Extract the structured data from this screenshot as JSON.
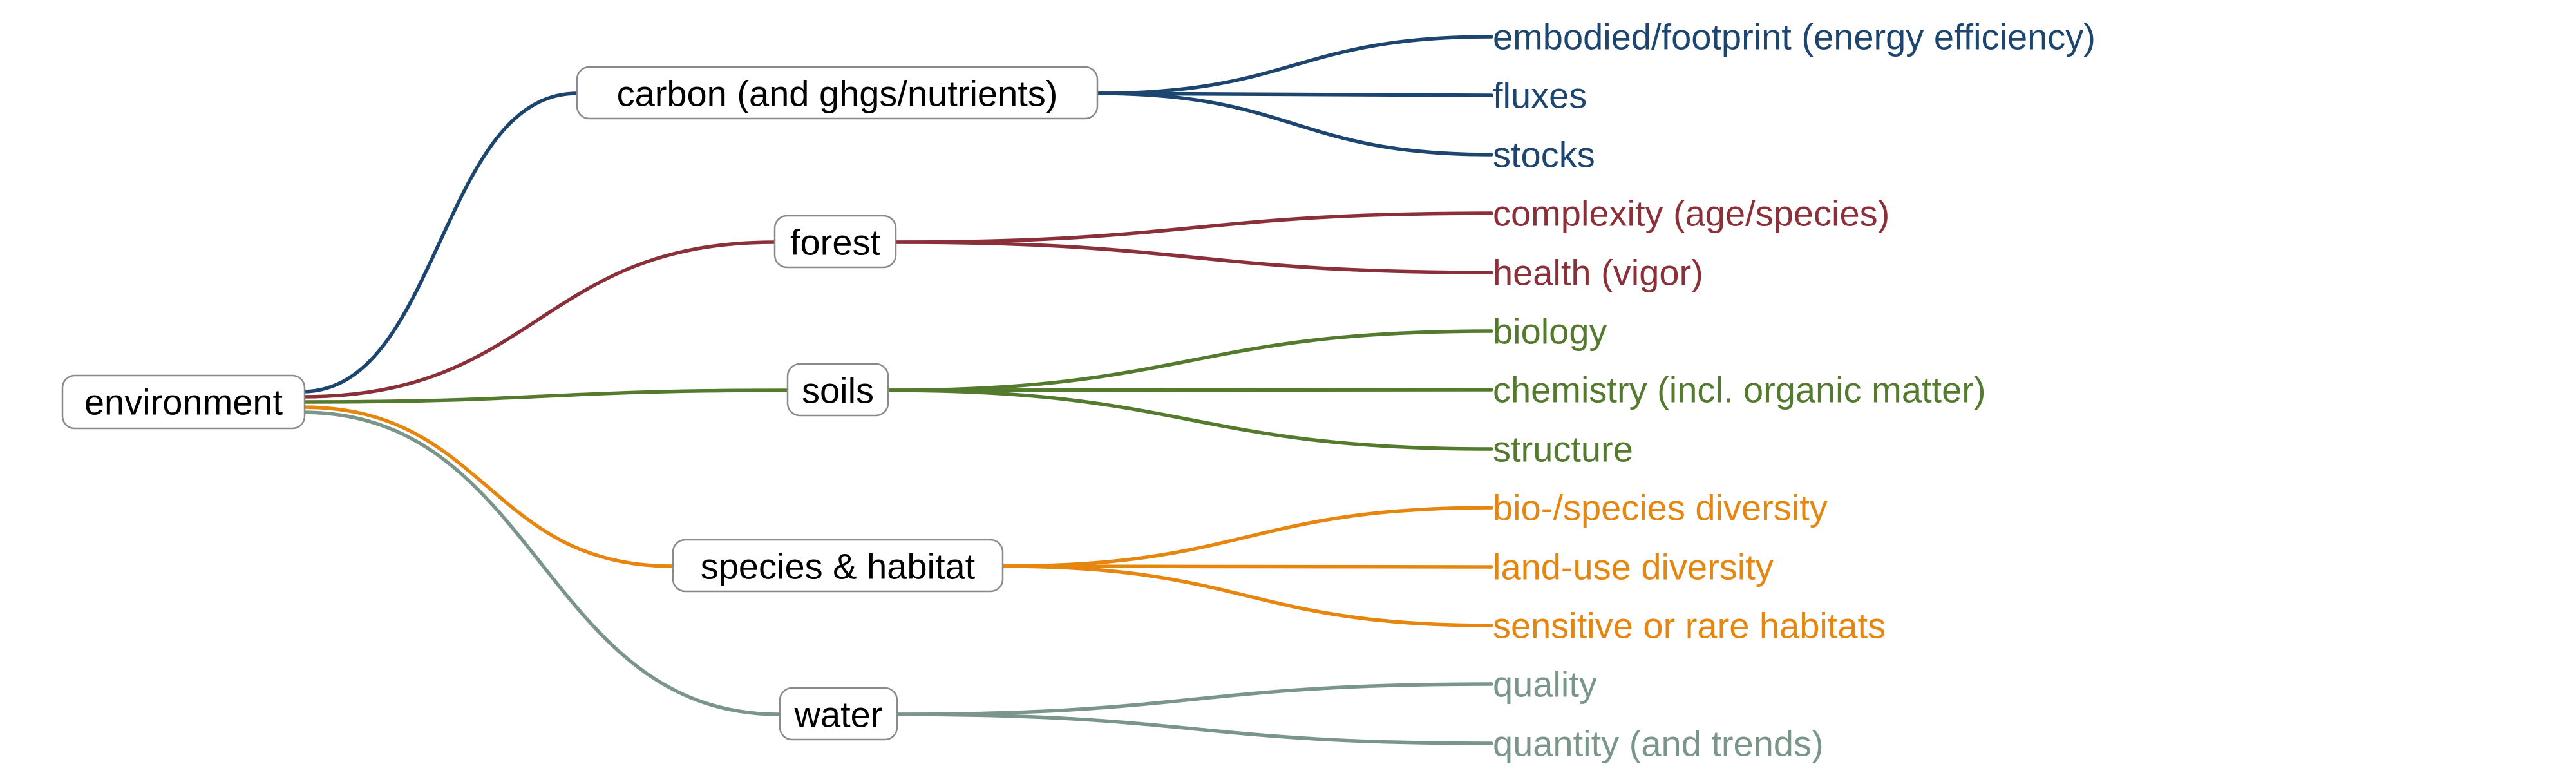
{
  "diagram": {
    "root": {
      "label": "environment"
    },
    "branches": [
      {
        "label": "carbon (and ghgs/nutrients)",
        "color": "#1c4670",
        "leaves": [
          "embodied/footprint (energy efficiency)",
          "fluxes",
          "stocks"
        ]
      },
      {
        "label": "forest",
        "color": "#8b3038",
        "leaves": [
          "complexity (age/species)",
          "health (vigor)"
        ]
      },
      {
        "label": "soils",
        "color": "#547a2e",
        "leaves": [
          "biology",
          "chemistry (incl. organic matter)",
          "structure"
        ]
      },
      {
        "label": "species & habitat",
        "color": "#e6860f",
        "leaves": [
          "bio-/species diversity",
          "land-use diversity",
          "sensitive or rare habitats"
        ]
      },
      {
        "label": "water",
        "color": "#7a968a",
        "leaves": [
          "quality",
          "quantity (and trends)"
        ]
      }
    ]
  }
}
